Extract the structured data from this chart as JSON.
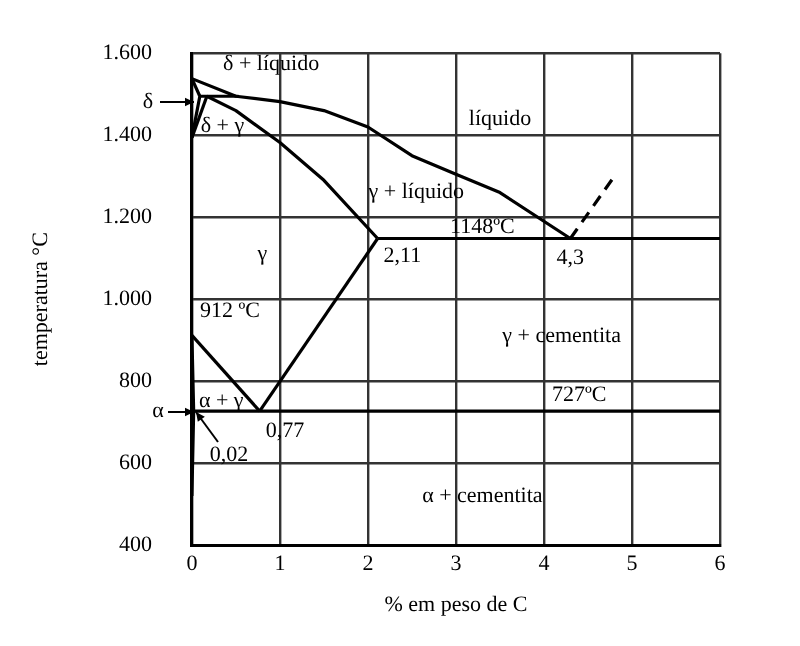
{
  "chart_data": {
    "type": "line",
    "xlabel": "% em peso de C",
    "ylabel": "temperatura °C",
    "xlim": [
      0,
      6
    ],
    "xticks": [
      0,
      1,
      2,
      3,
      4,
      5,
      6
    ],
    "ylim": [
      400,
      1600
    ],
    "yticks": [
      {
        "value": 400,
        "label": "400"
      },
      {
        "value": 600,
        "label": "600"
      },
      {
        "value": 800,
        "label": "800"
      },
      {
        "value": 1000,
        "label": "1.000"
      },
      {
        "value": 1200,
        "label": "1.200"
      },
      {
        "value": 1400,
        "label": "1.400"
      },
      {
        "value": 1600,
        "label": "1.600"
      }
    ],
    "grid": true,
    "legend": false,
    "marker": "none",
    "line_style": "solid",
    "series": [
      {
        "color": "#000000",
        "x": [
          0,
          0.5,
          1,
          1.5,
          2,
          2.5,
          3,
          3.5,
          4.3
        ],
        "values": [
          1538,
          1495,
          1482,
          1460,
          1420,
          1350,
          1305,
          1260,
          1148
        ]
      },
      {
        "color": "#000000",
        "x": [
          0.17,
          0.5,
          1,
          1.5,
          2.11
        ],
        "values": [
          1495,
          1460,
          1382,
          1290,
          1148
        ]
      },
      {
        "color": "#000000",
        "x": [
          2.11,
          6
        ],
        "values": [
          1148,
          1148
        ]
      },
      {
        "color": "#000000",
        "line_style": "dashed",
        "x": [
          4.3,
          4.8
        ],
        "values": [
          1148,
          1300
        ]
      },
      {
        "color": "#000000",
        "x": [
          0.77,
          2.11
        ],
        "values": [
          727,
          1148
        ]
      },
      {
        "color": "#000000",
        "x": [
          0,
          0.77
        ],
        "values": [
          912,
          727
        ]
      },
      {
        "color": "#000000",
        "x": [
          0.02,
          6
        ],
        "values": [
          727,
          727
        ]
      },
      {
        "color": "#000000",
        "x": [
          0,
          0.02,
          0
        ],
        "values": [
          912,
          727,
          520
        ]
      },
      {
        "color": "#000000",
        "x": [
          0,
          0.09,
          0
        ],
        "values": [
          1538,
          1495,
          1394
        ]
      },
      {
        "color": "#000000",
        "x": [
          0.09,
          0.53
        ],
        "values": [
          1495,
          1495
        ]
      },
      {
        "color": "#000000",
        "x": [
          0,
          0.17
        ],
        "values": [
          1394,
          1495
        ]
      }
    ],
    "annotations": [
      "δ + líquido",
      {
        "text": "δ",
        "x": 0,
        "y": 1480
      },
      "δ + γ",
      "líquido",
      "γ + líquido",
      "γ",
      {
        "text": "2,11",
        "x": 2.11,
        "y": 1148
      },
      {
        "text": "1148ºC",
        "x": 3.3,
        "y": 1148
      },
      {
        "text": "4,3",
        "x": 4.3,
        "y": 1148
      },
      {
        "text": "912 ºC",
        "x": 0,
        "y": 912
      },
      "γ + cementita",
      {
        "text": "727ºC",
        "x": 4.4,
        "y": 727
      },
      {
        "text": "α",
        "x": 0,
        "y": 727
      },
      "α + γ",
      {
        "text": "0,77",
        "x": 0.77,
        "y": 727
      },
      {
        "text": "0,02",
        "x": 0.02,
        "y": 727
      },
      "α + cementita"
    ]
  }
}
